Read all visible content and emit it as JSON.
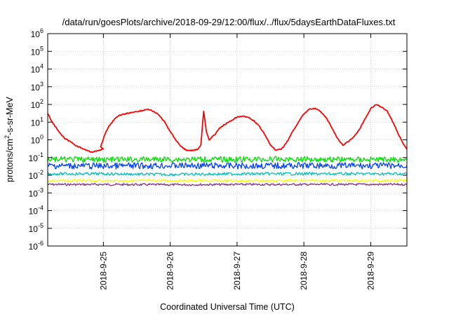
{
  "chart_data": {
    "type": "line",
    "title": "/data/run/goesPlots/archive/2018-09-29/12:00/flux/../flux/5daysEarthDataFluxes.txt",
    "xlabel": "Coordinated Universal Time (UTC)",
    "ylabel": {
      "base": "protons/cm",
      "sup": "2",
      "rest": "-s-sr-MeV"
    },
    "yscale": "log",
    "ylim": [
      1e-06,
      1000000.0
    ],
    "xlim": [
      "2018-09-24T04:00",
      "2018-09-29T13:00"
    ],
    "grid": true,
    "legend": "none",
    "y_ticks": [
      {
        "value": 1e-06,
        "base": "10",
        "exp": "-6"
      },
      {
        "value": 1e-05,
        "base": "10",
        "exp": "-5"
      },
      {
        "value": 0.0001,
        "base": "10",
        "exp": "-4"
      },
      {
        "value": 0.001,
        "base": "10",
        "exp": "-3"
      },
      {
        "value": 0.01,
        "base": "10",
        "exp": "-2"
      },
      {
        "value": 0.1,
        "base": "10",
        "exp": "-1"
      },
      {
        "value": 1.0,
        "base": "10",
        "exp": "0"
      },
      {
        "value": 10.0,
        "base": "10",
        "exp": "1"
      },
      {
        "value": 100.0,
        "base": "10",
        "exp": "2"
      },
      {
        "value": 1000.0,
        "base": "10",
        "exp": "3"
      },
      {
        "value": 10000.0,
        "base": "10",
        "exp": "4"
      },
      {
        "value": 100000.0,
        "base": "10",
        "exp": "5"
      },
      {
        "value": 1000000.0,
        "base": "10",
        "exp": "6"
      }
    ],
    "x_ticks": [
      {
        "time": "2018-09-25T00:00",
        "label": "2018-9-25"
      },
      {
        "time": "2018-09-26T00:00",
        "label": "2018-9-26"
      },
      {
        "time": "2018-09-27T00:00",
        "label": "2018-9-27"
      },
      {
        "time": "2018-09-28T00:00",
        "label": "2018-9-28"
      },
      {
        "time": "2018-09-29T00:00",
        "label": "2018-9-29"
      }
    ],
    "series": [
      {
        "color": "#7f2f7f",
        "points": [
          [
            "2018-09-24T04:00",
            0.003
          ],
          [
            "2018-09-25T00:00",
            0.003
          ],
          [
            "2018-09-26T00:00",
            0.0029
          ],
          [
            "2018-09-27T00:00",
            0.003
          ],
          [
            "2018-09-28T00:00",
            0.003
          ],
          [
            "2018-09-29T00:00",
            0.003
          ],
          [
            "2018-09-29T13:00",
            0.003
          ]
        ]
      },
      {
        "color": "#ffff00",
        "points": [
          [
            "2018-09-24T04:00",
            0.005
          ],
          [
            "2018-09-25T00:00",
            0.0048
          ],
          [
            "2018-09-26T00:00",
            0.005
          ],
          [
            "2018-09-27T00:00",
            0.0049
          ],
          [
            "2018-09-28T00:00",
            0.005
          ],
          [
            "2018-09-29T00:00",
            0.005
          ],
          [
            "2018-09-29T13:00",
            0.005
          ]
        ]
      },
      {
        "color": "#00c0c0",
        "points": [
          [
            "2018-09-24T04:00",
            0.012
          ],
          [
            "2018-09-25T00:00",
            0.012
          ],
          [
            "2018-09-26T00:00",
            0.011
          ],
          [
            "2018-09-27T00:00",
            0.012
          ],
          [
            "2018-09-28T00:00",
            0.012
          ],
          [
            "2018-09-29T00:00",
            0.012
          ],
          [
            "2018-09-29T13:00",
            0.012
          ]
        ]
      },
      {
        "color": "#0040ff",
        "points": [
          [
            "2018-09-24T04:00",
            0.035
          ],
          [
            "2018-09-25T00:00",
            0.033
          ],
          [
            "2018-09-26T00:00",
            0.035
          ],
          [
            "2018-09-27T00:00",
            0.034
          ],
          [
            "2018-09-28T00:00",
            0.035
          ],
          [
            "2018-09-29T00:00",
            0.034
          ],
          [
            "2018-09-29T13:00",
            0.035
          ]
        ]
      },
      {
        "color": "#00e000",
        "points": [
          [
            "2018-09-24T04:00",
            0.08
          ],
          [
            "2018-09-25T00:00",
            0.075
          ],
          [
            "2018-09-26T00:00",
            0.08
          ],
          [
            "2018-09-27T00:00",
            0.078
          ],
          [
            "2018-09-28T00:00",
            0.08
          ],
          [
            "2018-09-29T00:00",
            0.078
          ],
          [
            "2018-09-29T13:00",
            0.08
          ]
        ]
      },
      {
        "color": "#ff0000",
        "points": [
          [
            "2018-09-24T04:00",
            30
          ],
          [
            "2018-09-24T06:00",
            8
          ],
          [
            "2018-09-24T08:00",
            3
          ],
          [
            "2018-09-24T10:00",
            1.2
          ],
          [
            "2018-09-24T12:00",
            0.8
          ],
          [
            "2018-09-24T14:00",
            0.5
          ],
          [
            "2018-09-24T16:00",
            0.35
          ],
          [
            "2018-09-24T18:00",
            0.25
          ],
          [
            "2018-09-24T20:00",
            0.2
          ],
          [
            "2018-09-24T22:00",
            0.25
          ],
          [
            "2018-09-25T00:00",
            0.3
          ],
          [
            "2018-09-24T23:00",
            0.4
          ],
          [
            "2018-09-25T00:30",
            2
          ],
          [
            "2018-09-25T02:00",
            6
          ],
          [
            "2018-09-25T04:00",
            15
          ],
          [
            "2018-09-25T06:00",
            25
          ],
          [
            "2018-09-25T08:00",
            30
          ],
          [
            "2018-09-25T10:00",
            35
          ],
          [
            "2018-09-25T12:00",
            40
          ],
          [
            "2018-09-25T14:00",
            45
          ],
          [
            "2018-09-25T16:00",
            55
          ],
          [
            "2018-09-25T18:00",
            40
          ],
          [
            "2018-09-25T20:00",
            25
          ],
          [
            "2018-09-25T22:00",
            10
          ],
          [
            "2018-09-26T00:00",
            3
          ],
          [
            "2018-09-26T02:00",
            1
          ],
          [
            "2018-09-26T04:00",
            0.4
          ],
          [
            "2018-09-26T06:00",
            0.25
          ],
          [
            "2018-09-26T08:00",
            0.25
          ],
          [
            "2018-09-26T10:00",
            0.3
          ],
          [
            "2018-09-26T11:00",
            0.5
          ],
          [
            "2018-09-26T12:00",
            40
          ],
          [
            "2018-09-26T13:00",
            3
          ],
          [
            "2018-09-26T14:00",
            1
          ],
          [
            "2018-09-26T16:00",
            2
          ],
          [
            "2018-09-26T18:00",
            5
          ],
          [
            "2018-09-26T20:00",
            8
          ],
          [
            "2018-09-26T22:00",
            12
          ],
          [
            "2018-09-27T00:00",
            20
          ],
          [
            "2018-09-27T02:00",
            22
          ],
          [
            "2018-09-27T04:00",
            18
          ],
          [
            "2018-09-27T06:00",
            12
          ],
          [
            "2018-09-27T08:00",
            6
          ],
          [
            "2018-09-27T10:00",
            2
          ],
          [
            "2018-09-27T12:00",
            0.5
          ],
          [
            "2018-09-27T14:00",
            0.25
          ],
          [
            "2018-09-27T16:00",
            0.3
          ],
          [
            "2018-09-27T18:00",
            0.8
          ],
          [
            "2018-09-27T20:00",
            3
          ],
          [
            "2018-09-27T22:00",
            10
          ],
          [
            "2018-09-28T00:00",
            30
          ],
          [
            "2018-09-28T02:00",
            55
          ],
          [
            "2018-09-28T04:00",
            60
          ],
          [
            "2018-09-28T06:00",
            40
          ],
          [
            "2018-09-28T08:00",
            18
          ],
          [
            "2018-09-28T10:00",
            5
          ],
          [
            "2018-09-28T12:00",
            1.2
          ],
          [
            "2018-09-28T14:00",
            0.5
          ],
          [
            "2018-09-28T16:00",
            0.8
          ],
          [
            "2018-09-28T18:00",
            1.5
          ],
          [
            "2018-09-28T20:00",
            4
          ],
          [
            "2018-09-28T22:00",
            15
          ],
          [
            "2018-09-29T00:00",
            60
          ],
          [
            "2018-09-29T02:00",
            100
          ],
          [
            "2018-09-29T04:00",
            70
          ],
          [
            "2018-09-29T06:00",
            40
          ],
          [
            "2018-09-29T08:00",
            10
          ],
          [
            "2018-09-29T10:00",
            2
          ],
          [
            "2018-09-29T12:00",
            0.5
          ],
          [
            "2018-09-29T13:00",
            0.3
          ]
        ]
      }
    ]
  }
}
